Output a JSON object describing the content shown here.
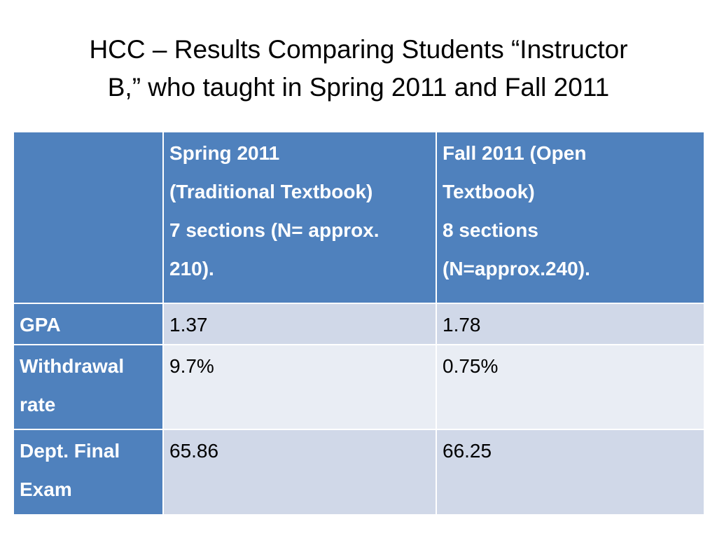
{
  "slide": {
    "title_line1": "HCC – Results Comparing Students “Instructor",
    "title_line2": "B,” who taught in Spring 2011 and Fall 2011"
  },
  "table": {
    "corner": "",
    "columns": [
      {
        "lines": [
          "Spring 2011",
          "(Traditional Textbook)",
          "7 sections (N= approx.",
          "210)."
        ]
      },
      {
        "lines": [
          "Fall 2011 (Open",
          "Textbook)",
          "8 sections",
          "(N=approx.240)."
        ]
      }
    ],
    "rows": [
      {
        "label_lines": [
          "GPA"
        ],
        "values": [
          "1.37",
          "1.78"
        ]
      },
      {
        "label_lines": [
          "Withdrawal",
          "rate"
        ],
        "values": [
          "9.7%",
          "0.75%"
        ]
      },
      {
        "label_lines": [
          "Dept. Final",
          "Exam"
        ],
        "values": [
          "65.86",
          "66.25"
        ]
      }
    ]
  },
  "colors": {
    "header_blue": "#4f81bd",
    "row_dark": "#d0d8e8",
    "row_light": "#e9edf4"
  }
}
